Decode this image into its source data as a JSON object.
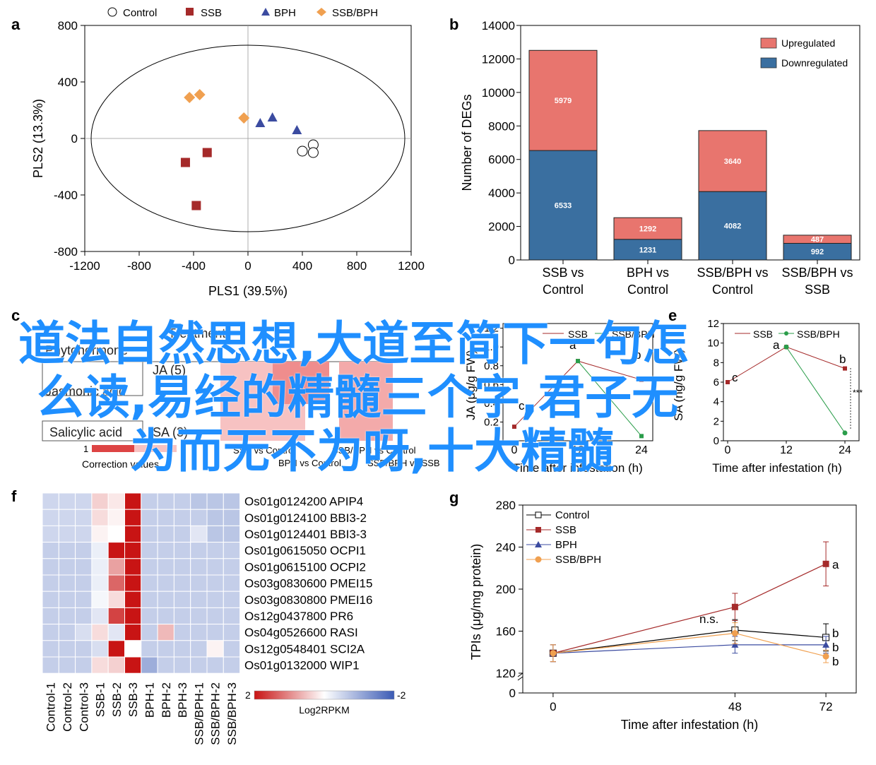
{
  "panel_letters": {
    "a": "a",
    "b": "b",
    "c": "c",
    "e": "e",
    "f": "f",
    "g": "g"
  },
  "colors": {
    "control": "#000000",
    "ssb": "#a52a2a",
    "bph": "#3b4ba0",
    "ssb_bph": "#f0a050",
    "upregulated": "#e8756e",
    "downregulated": "#3a6fa0",
    "heat_high": "#c81414",
    "heat_low": "#3b5bb5",
    "overlay_text": "#1f8fff"
  },
  "overlay": {
    "line1": "道法自然思想,大道至简下一句怎",
    "line2": "么读,易经的精髓三个字,君子无",
    "line3": "为而无不为呀,十大精髓"
  },
  "chart_data": [
    {
      "id": "a",
      "type": "scatter",
      "xlabel": "PLS1 (39.5%)",
      "ylabel": "PLS2 (13.3%)",
      "xlim": [
        -1200,
        1200
      ],
      "ylim": [
        -800,
        800
      ],
      "xticks": [
        "-1200",
        "-800",
        "-400",
        "0",
        "400",
        "800",
        "1200"
      ],
      "yticks": [
        "800",
        "400",
        "0",
        "-400",
        "-800"
      ],
      "legend": [
        "Control",
        "SSB",
        "BPH",
        "SSB/BPH"
      ],
      "series": [
        {
          "name": "Control",
          "marker": "circle-open",
          "points": [
            [
              480,
              -45
            ],
            [
              400,
              -90
            ],
            [
              480,
              -100
            ]
          ]
        },
        {
          "name": "SSB",
          "marker": "square",
          "points": [
            [
              -460,
              -170
            ],
            [
              -300,
              -100
            ],
            [
              -380,
              -475
            ]
          ]
        },
        {
          "name": "BPH",
          "marker": "triangle",
          "points": [
            [
              90,
              110
            ],
            [
              180,
              150
            ],
            [
              360,
              60
            ]
          ]
        },
        {
          "name": "SSB/BPH",
          "marker": "diamond",
          "points": [
            [
              -430,
              290
            ],
            [
              -355,
              310
            ],
            [
              -30,
              145
            ]
          ]
        }
      ]
    },
    {
      "id": "b",
      "type": "bar",
      "ylabel": "Number of DEGs",
      "ylim": [
        0,
        14000
      ],
      "yticks": [
        "0",
        "2000",
        "4000",
        "6000",
        "8000",
        "10000",
        "12000",
        "14000"
      ],
      "categories": [
        [
          "SSB vs",
          "Control"
        ],
        [
          "BPH vs",
          "Control"
        ],
        [
          "SSB/BPH vs",
          "Control"
        ],
        [
          "SSB/BPH vs",
          "SSB"
        ]
      ],
      "series": [
        {
          "name": "Downregulated",
          "values": [
            6533,
            1231,
            4082,
            992
          ]
        },
        {
          "name": "Upregulated",
          "values": [
            5979,
            1292,
            3640,
            487
          ]
        }
      ]
    },
    {
      "id": "c",
      "type": "table",
      "title": "Treatment",
      "row_header": "Phytohormone",
      "rows": [
        {
          "name": "Jasmonic acid",
          "abbr": "JA (5)"
        },
        {
          "name": "Salicylic acid",
          "abbr": "SA (3)"
        }
      ],
      "columns": [
        "SSB vs Control",
        "BPH vs Control",
        "SSB/BPH vs Control",
        "SSB/BPH vs SSB"
      ],
      "scale_label": "Correction values",
      "scale_min": "1"
    },
    {
      "id": "d",
      "type": "line",
      "ylabel": "JA (μg/g FW)",
      "xlabel": "Time after infestation (h)",
      "xticks": [
        "0",
        "12",
        "24"
      ],
      "yticks": [
        "0.2",
        "0.4",
        "0.6",
        "0.8",
        "1.0",
        "1.2"
      ],
      "legend": [
        "SSB",
        "SSB/BPH"
      ],
      "letters": [
        "c",
        "a",
        "b"
      ],
      "series": [
        {
          "name": "SSB",
          "x": [
            0,
            12,
            24
          ],
          "y": [
            0.15,
            0.85,
            0.65
          ]
        },
        {
          "name": "SSB/BPH",
          "x": [
            12,
            24
          ],
          "y": [
            0.85,
            0.05
          ]
        }
      ]
    },
    {
      "id": "e",
      "type": "line",
      "ylabel": "SA (ng/g FW)",
      "xlabel": "Time after infestation (h)",
      "xlim": [
        0,
        24
      ],
      "ylim": [
        0,
        12
      ],
      "xticks": [
        "0",
        "12",
        "24"
      ],
      "yticks": [
        "0",
        "2",
        "4",
        "6",
        "8",
        "10",
        "12"
      ],
      "legend": [
        "SSB",
        "SSB/BPH"
      ],
      "letters": [
        "c",
        "a",
        "b"
      ],
      "significance": "***",
      "series": [
        {
          "name": "SSB",
          "x": [
            0,
            12,
            24
          ],
          "y": [
            6.0,
            9.6,
            7.4
          ]
        },
        {
          "name": "SSB/BPH",
          "x": [
            12,
            24
          ],
          "y": [
            9.6,
            0.8
          ]
        }
      ]
    },
    {
      "id": "f",
      "type": "heatmap",
      "colorbar_label": "Log2RPKM",
      "colorbar_min": "2",
      "colorbar_max": "-2",
      "columns": [
        "Control-1",
        "Control-2",
        "Control-3",
        "SSB-1",
        "SSB-2",
        "SSB-3",
        "BPH-1",
        "BPH-2",
        "BPH-3",
        "SSB/BPH-1",
        "SSB/BPH-2",
        "SSB/BPH-3"
      ],
      "rows": [
        "Os01g0124200 APIP4",
        "Os01g0124100 BBI3-2",
        "Os01g0124401 BBI3-3",
        "Os01g0615050 OCPI1",
        "Os01g0615100 OCPI2",
        "Os03g0830600 PMEI15",
        "Os03g0830800 PMEI16",
        "Os12g0437800 PR6",
        "Os04g0526600 RASI",
        "Os12g0548401 SCI2A",
        "Os01g0132000 WIP1"
      ],
      "values": [
        [
          -0.5,
          -0.5,
          -0.5,
          0.4,
          0.2,
          2,
          -0.6,
          -0.6,
          -0.6,
          -0.7,
          -0.7,
          -0.7
        ],
        [
          -0.5,
          -0.5,
          -0.5,
          0.3,
          0.1,
          2,
          -0.6,
          -0.6,
          -0.6,
          -0.6,
          -0.7,
          -0.7
        ],
        [
          -0.5,
          -0.5,
          -0.5,
          0.1,
          0.0,
          2,
          -0.6,
          -0.6,
          -0.6,
          -0.3,
          -0.7,
          -0.7
        ],
        [
          -0.6,
          -0.6,
          -0.6,
          -0.2,
          2,
          2,
          -0.6,
          -0.6,
          -0.6,
          -0.6,
          -0.6,
          -0.6
        ],
        [
          -0.6,
          -0.6,
          -0.6,
          -0.2,
          0.8,
          2,
          -0.6,
          -0.6,
          -0.6,
          -0.6,
          -0.6,
          -0.6
        ],
        [
          -0.6,
          -0.6,
          -0.6,
          -0.2,
          1.3,
          2,
          -0.6,
          -0.6,
          -0.6,
          -0.6,
          -0.6,
          -0.6
        ],
        [
          -0.6,
          -0.6,
          -0.6,
          -0.1,
          0.3,
          2,
          -0.6,
          -0.6,
          -0.6,
          -0.6,
          -0.6,
          -0.6
        ],
        [
          -0.6,
          -0.6,
          -0.6,
          -0.3,
          1.6,
          2,
          -0.6,
          -0.6,
          -0.6,
          -0.6,
          -0.6,
          -0.6
        ],
        [
          -0.6,
          -0.6,
          -0.4,
          0.3,
          -0.3,
          2,
          -0.6,
          0.6,
          -0.6,
          -0.6,
          -0.6,
          -0.6
        ],
        [
          -0.6,
          -0.6,
          -0.6,
          -0.4,
          2,
          0.0,
          -0.6,
          -0.6,
          -0.6,
          -0.6,
          0.1,
          -0.6
        ],
        [
          -0.6,
          -0.6,
          -0.6,
          0.3,
          0.4,
          2,
          -1.0,
          -0.6,
          -0.6,
          -0.6,
          -0.6,
          -0.6
        ]
      ]
    },
    {
      "id": "g",
      "type": "line",
      "ylabel": "TPIs (μg/mg protein)",
      "xlabel": "Time after infestation (h)",
      "xlim": [
        -8,
        80
      ],
      "xticks": [
        "0",
        "48",
        "72"
      ],
      "yticks": [
        "0",
        "120",
        "160",
        "200",
        "240",
        "280"
      ],
      "legend": [
        "Control",
        "SSB",
        "BPH",
        "SSB/BPH"
      ],
      "annotations": {
        "ns": "n.s.",
        "a": "a",
        "b1": "b",
        "b2": "b",
        "b3": "b"
      },
      "series": [
        {
          "name": "Control",
          "x": [
            0,
            48,
            72
          ],
          "y": [
            139,
            161,
            154
          ],
          "err": [
            8,
            10,
            13
          ]
        },
        {
          "name": "SSB",
          "x": [
            0,
            48,
            72
          ],
          "y": [
            139,
            183,
            224
          ],
          "err": [
            8,
            13,
            21
          ]
        },
        {
          "name": "BPH",
          "x": [
            0,
            48,
            72
          ],
          "y": [
            139,
            147,
            147
          ],
          "err": [
            8,
            8,
            8
          ]
        },
        {
          "name": "SSB/BPH",
          "x": [
            0,
            48,
            72
          ],
          "y": [
            139,
            158,
            136
          ],
          "err": [
            8,
            10,
            6
          ]
        }
      ]
    }
  ]
}
